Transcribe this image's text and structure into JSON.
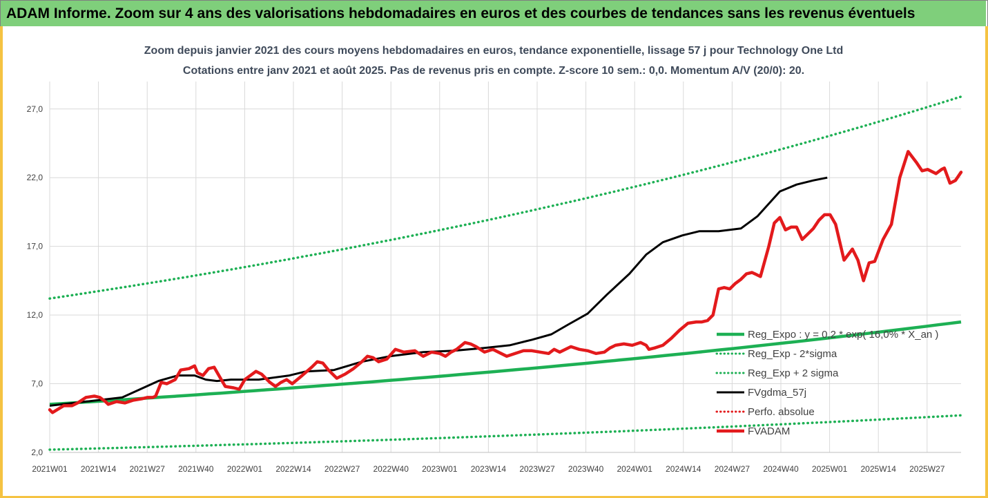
{
  "banner": {
    "title": "ADAM Informe. Zoom sur 4 ans des valorisations hebdomadaires en euros et des courbes de tendances sans les revenus éventuels"
  },
  "colors": {
    "banner_bg": "#7fcf7b",
    "frame_accent": "#f5c342",
    "green": "#1db054",
    "red": "#e31a1c",
    "black": "#000000",
    "grid": "#d9d9d9"
  },
  "chart_data": {
    "type": "line",
    "title_line1": "Zoom depuis janvier 2021 des cours moyens hebdomadaires en euros, tendance exponentielle, lissage 57 j pour Technology One Ltd",
    "title_line2": "Cotations entre janv 2021 et août 2025. Pas de revenus pris en compte. Z-score 10 sem.: 0,0. Momentum A/V (20/0): 20.",
    "ylim": [
      2.0,
      29.0
    ],
    "yticks": [
      2.0,
      7.0,
      12.0,
      17.0,
      22.0,
      27.0
    ],
    "ytick_labels": [
      "2,0",
      "7,0",
      "12,0",
      "17,0",
      "22,0",
      "27,0"
    ],
    "xtick_labels": [
      "2021W01",
      "2021W14",
      "2021W27",
      "2021W40",
      "2022W01",
      "2022W14",
      "2022W27",
      "2022W40",
      "2023W01",
      "2023W14",
      "2023W27",
      "2023W40",
      "2024W01",
      "2024W14",
      "2024W27",
      "2024W40",
      "2025W01",
      "2025W14",
      "2025W27"
    ],
    "x_range_weeks": [
      0,
      238
    ],
    "legend": [
      {
        "label": "Reg_Expo : y = 0,2 * exp( 16,0% *  X_an )",
        "style": "solid-thick",
        "color": "#1db054"
      },
      {
        "label": "Reg_Exp - 2*sigma",
        "style": "dotted",
        "color": "#1db054"
      },
      {
        "label": "Reg_Exp + 2 sigma",
        "style": "dotted",
        "color": "#1db054"
      },
      {
        "label": "FVgdma_57j",
        "style": "solid",
        "color": "#000000"
      },
      {
        "label": "Perfo. absolue",
        "style": "dotted",
        "color": "#e31a1c"
      },
      {
        "label": "FVADAM",
        "style": "solid-thick",
        "color": "#e31a1c"
      }
    ],
    "series": [
      {
        "key": "reg_expo",
        "start": 5.5,
        "end": 11.5
      },
      {
        "key": "reg_minus",
        "start": 2.2,
        "end": 4.7
      },
      {
        "key": "reg_plus",
        "start": 13.2,
        "end": 27.9
      },
      {
        "key": "fvgdma",
        "points": [
          [
            0,
            5.4
          ],
          [
            13,
            5.7
          ],
          [
            26,
            6.0
          ],
          [
            39,
            7.2
          ],
          [
            46,
            7.6
          ],
          [
            52,
            7.6
          ],
          [
            56,
            7.3
          ],
          [
            60,
            7.2
          ],
          [
            65,
            7.3
          ],
          [
            75,
            7.3
          ],
          [
            86,
            7.6
          ],
          [
            92,
            7.9
          ],
          [
            102,
            8.0
          ],
          [
            112,
            8.6
          ],
          [
            122,
            9.0
          ],
          [
            134,
            9.3
          ],
          [
            145,
            9.4
          ],
          [
            156,
            9.6
          ],
          [
            165,
            9.8
          ],
          [
            173,
            10.2
          ],
          [
            180,
            10.6
          ],
          [
            186,
            11.3
          ],
          [
            193,
            12.1
          ],
          [
            200,
            13.5
          ],
          [
            208,
            15.0
          ],
          [
            214,
            16.4
          ],
          [
            220,
            17.3
          ],
          [
            227,
            17.8
          ],
          [
            233,
            18.1
          ],
          [
            240,
            18.1
          ],
          [
            248,
            18.3
          ],
          [
            254,
            19.2
          ],
          [
            262,
            21.0
          ],
          [
            268,
            21.5
          ],
          [
            274,
            21.8
          ],
          [
            279,
            22.0
          ]
        ]
      },
      {
        "key": "fvadam",
        "points": [
          [
            0,
            5.1
          ],
          [
            1,
            4.9
          ],
          [
            5,
            5.4
          ],
          [
            8,
            5.4
          ],
          [
            10,
            5.6
          ],
          [
            13,
            6.0
          ],
          [
            16,
            6.1
          ],
          [
            18,
            6.0
          ],
          [
            20,
            5.7
          ],
          [
            21,
            5.5
          ],
          [
            24,
            5.7
          ],
          [
            27,
            5.6
          ],
          [
            30,
            5.8
          ],
          [
            33,
            5.9
          ],
          [
            35,
            6.0
          ],
          [
            37,
            6.0
          ],
          [
            38,
            6.1
          ],
          [
            40,
            7.1
          ],
          [
            42,
            7.0
          ],
          [
            45,
            7.3
          ],
          [
            47,
            8.0
          ],
          [
            50,
            8.1
          ],
          [
            52,
            8.3
          ],
          [
            53,
            7.8
          ],
          [
            55,
            7.6
          ],
          [
            57,
            8.1
          ],
          [
            59,
            8.2
          ],
          [
            61,
            7.5
          ],
          [
            63,
            6.8
          ],
          [
            66,
            6.7
          ],
          [
            68,
            6.6
          ],
          [
            70,
            7.3
          ],
          [
            74,
            7.9
          ],
          [
            76,
            7.7
          ],
          [
            79,
            7.1
          ],
          [
            81,
            6.8
          ],
          [
            83,
            7.1
          ],
          [
            85,
            7.3
          ],
          [
            87,
            7.0
          ],
          [
            90,
            7.5
          ],
          [
            94,
            8.2
          ],
          [
            96,
            8.6
          ],
          [
            98,
            8.5
          ],
          [
            100,
            8.0
          ],
          [
            103,
            7.4
          ],
          [
            106,
            7.7
          ],
          [
            109,
            8.1
          ],
          [
            112,
            8.6
          ],
          [
            114,
            9.0
          ],
          [
            116,
            8.9
          ],
          [
            118,
            8.6
          ],
          [
            121,
            8.8
          ],
          [
            124,
            9.5
          ],
          [
            127,
            9.3
          ],
          [
            131,
            9.4
          ],
          [
            134,
            9.0
          ],
          [
            137,
            9.3
          ],
          [
            140,
            9.2
          ],
          [
            142,
            9.0
          ],
          [
            144,
            9.3
          ],
          [
            146,
            9.5
          ],
          [
            149,
            10.0
          ],
          [
            151,
            9.9
          ],
          [
            153,
            9.7
          ],
          [
            156,
            9.3
          ],
          [
            159,
            9.5
          ],
          [
            162,
            9.2
          ],
          [
            164,
            9.0
          ],
          [
            167,
            9.2
          ],
          [
            170,
            9.4
          ],
          [
            173,
            9.4
          ],
          [
            176,
            9.3
          ],
          [
            179,
            9.2
          ],
          [
            181,
            9.5
          ],
          [
            183,
            9.3
          ],
          [
            187,
            9.7
          ],
          [
            190,
            9.5
          ],
          [
            193,
            9.4
          ],
          [
            196,
            9.2
          ],
          [
            199,
            9.3
          ],
          [
            201,
            9.6
          ],
          [
            203,
            9.8
          ],
          [
            206,
            9.9
          ],
          [
            209,
            9.8
          ],
          [
            212,
            10.0
          ],
          [
            214,
            9.8
          ],
          [
            215,
            9.5
          ],
          [
            217,
            9.6
          ],
          [
            220,
            9.8
          ],
          [
            223,
            10.3
          ],
          [
            226,
            10.9
          ],
          [
            229,
            11.4
          ],
          [
            232,
            11.5
          ],
          [
            234,
            11.5
          ],
          [
            236,
            11.6
          ],
          [
            238,
            12.0
          ],
          [
            240,
            13.9
          ],
          [
            242,
            14.0
          ],
          [
            244,
            13.9
          ],
          [
            246,
            14.3
          ],
          [
            248,
            14.6
          ],
          [
            250,
            15.0
          ],
          [
            252,
            15.1
          ],
          [
            253,
            15.0
          ],
          [
            255,
            14.8
          ],
          [
            258,
            17.0
          ],
          [
            260,
            18.7
          ],
          [
            262,
            19.1
          ],
          [
            264,
            18.2
          ],
          [
            266,
            18.4
          ],
          [
            268,
            18.4
          ],
          [
            270,
            17.5
          ],
          [
            272,
            17.9
          ],
          [
            274,
            18.3
          ],
          [
            276,
            18.9
          ],
          [
            278,
            19.3
          ],
          [
            280,
            19.3
          ],
          [
            282,
            18.6
          ],
          [
            285,
            16.0
          ],
          [
            288,
            16.8
          ],
          [
            290,
            16.0
          ],
          [
            292,
            14.5
          ],
          [
            294,
            15.8
          ],
          [
            296,
            15.9
          ],
          [
            299,
            17.5
          ],
          [
            302,
            18.6
          ],
          [
            305,
            22.0
          ],
          [
            308,
            23.9
          ],
          [
            311,
            23.1
          ],
          [
            313,
            22.5
          ],
          [
            315,
            22.6
          ],
          [
            318,
            22.3
          ],
          [
            320,
            22.6
          ],
          [
            321,
            22.7
          ],
          [
            323,
            21.6
          ],
          [
            325,
            21.8
          ],
          [
            327,
            22.4
          ]
        ]
      }
    ]
  }
}
